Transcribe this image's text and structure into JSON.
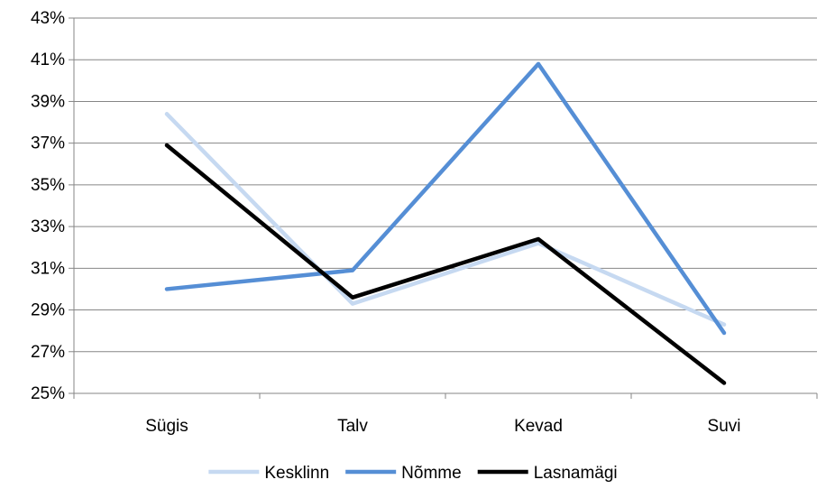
{
  "chart_data": {
    "type": "line",
    "categories": [
      "Sügis",
      "Talv",
      "Kevad",
      "Suvi"
    ],
    "y_ticks": [
      "25%",
      "27%",
      "29%",
      "31%",
      "33%",
      "35%",
      "37%",
      "39%",
      "41%",
      "43%"
    ],
    "ylim": [
      25,
      43
    ],
    "y_unit": "%",
    "grid": true,
    "legend_position": "bottom",
    "series": [
      {
        "name": "Kesklinn",
        "color": "#c6d9f1",
        "values": [
          38.4,
          29.3,
          32.2,
          28.3
        ]
      },
      {
        "name": "Nõmme",
        "color": "#558ed5",
        "values": [
          30.0,
          30.9,
          40.8,
          27.9
        ]
      },
      {
        "name": "Lasnamägi",
        "color": "#000000",
        "values": [
          36.9,
          29.6,
          32.4,
          25.5
        ]
      }
    ]
  }
}
